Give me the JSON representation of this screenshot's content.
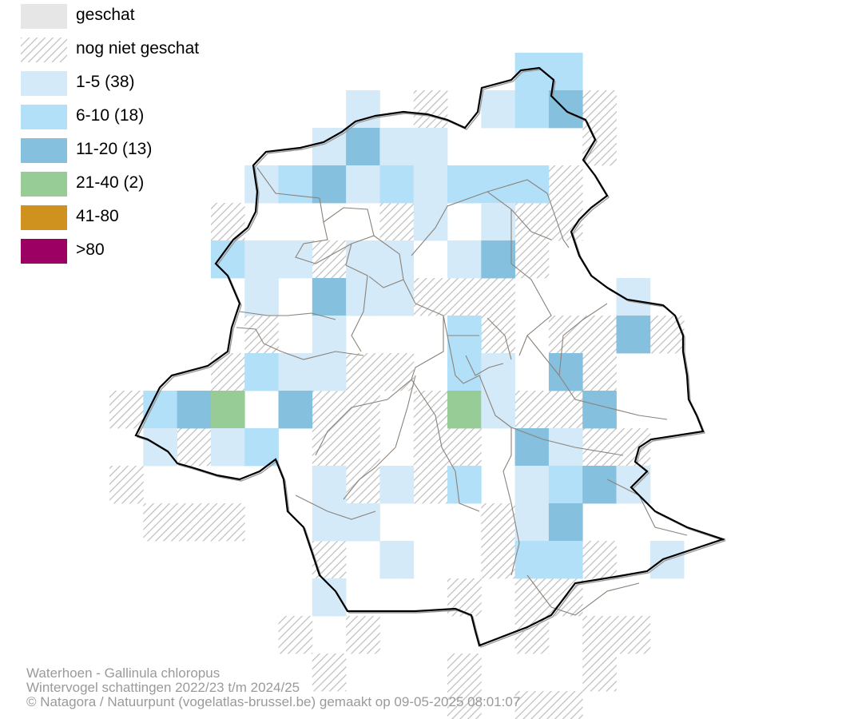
{
  "legend": {
    "items": [
      {
        "key": "surveyed",
        "label": "geschat",
        "fill": "#e6e6e6"
      },
      {
        "key": "not_surveyed",
        "label": "nog niet geschat",
        "fill": "hatch"
      },
      {
        "key": "c1",
        "label": "1-5 (38)",
        "fill": "#d4eaf9"
      },
      {
        "key": "c2",
        "label": "6-10 (18)",
        "fill": "#b2e0f9"
      },
      {
        "key": "c3",
        "label": "11-20 (13)",
        "fill": "#85c0de"
      },
      {
        "key": "c4",
        "label": "21-40 (2)",
        "fill": "#97cc97"
      },
      {
        "key": "c5",
        "label": "41-80",
        "fill": "#d0921f"
      },
      {
        "key": "c6",
        "label": ">80",
        "fill": "#9b0062"
      }
    ]
  },
  "colors": {
    "hatch_line": "#b9b9b9",
    "outline": "#000000",
    "commune_line": "#8c8279"
  },
  "footer": {
    "line1": "Waterhoen - Gallinula chloropus",
    "line2": "Wintervogel schattingen 2022/23 t/m 2024/25",
    "line3": "© Natagora / Natuurpunt (vogelatlas-brussel.be) gemaakt op 09-05-2025 08:01:07"
  }
}
